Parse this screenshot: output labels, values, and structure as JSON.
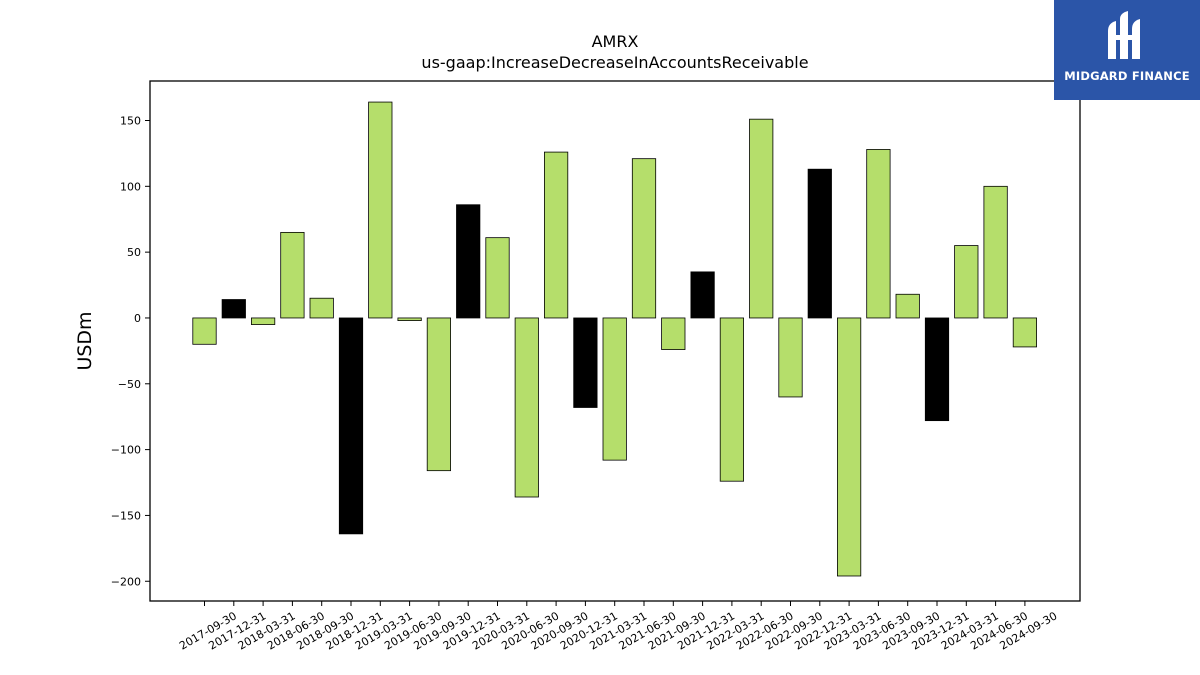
{
  "brand": {
    "name": "MIDGARD FINANCE",
    "logo_icon": "midgard-logo-icon",
    "background": "#2b55a8"
  },
  "chart_data": {
    "type": "bar",
    "title": "AMRX",
    "subtitle": "us-gaap:IncreaseDecreaseInAccountsReceivable",
    "xlabel": "",
    "ylabel": "USDm",
    "ylim": [
      -215,
      180
    ],
    "yticks": [
      150,
      100,
      50,
      0,
      -50,
      -100,
      -150,
      -200
    ],
    "grid": false,
    "colors": {
      "quarterly": "#b5de6b",
      "year_end": "#000000",
      "edge": "#000000"
    },
    "categories": [
      "2017-09-30",
      "2017-12-31",
      "2018-03-31",
      "2018-06-30",
      "2018-09-30",
      "2018-12-31",
      "2019-03-31",
      "2019-06-30",
      "2019-09-30",
      "2019-12-31",
      "2020-03-31",
      "2020-06-30",
      "2020-09-30",
      "2020-12-31",
      "2021-03-31",
      "2021-06-30",
      "2021-09-30",
      "2021-12-31",
      "2022-03-31",
      "2022-06-30",
      "2022-09-30",
      "2022-12-31",
      "2023-03-31",
      "2023-06-30",
      "2023-09-30",
      "2023-12-31",
      "2024-03-31",
      "2024-06-30",
      "2024-09-30"
    ],
    "values": [
      -20,
      14,
      -5,
      65,
      15,
      -164,
      164,
      -2,
      -116,
      86,
      61,
      -136,
      126,
      -68,
      -108,
      121,
      -24,
      35,
      -124,
      151,
      -60,
      113,
      -196,
      128,
      18,
      -78,
      55,
      100,
      -22
    ]
  }
}
